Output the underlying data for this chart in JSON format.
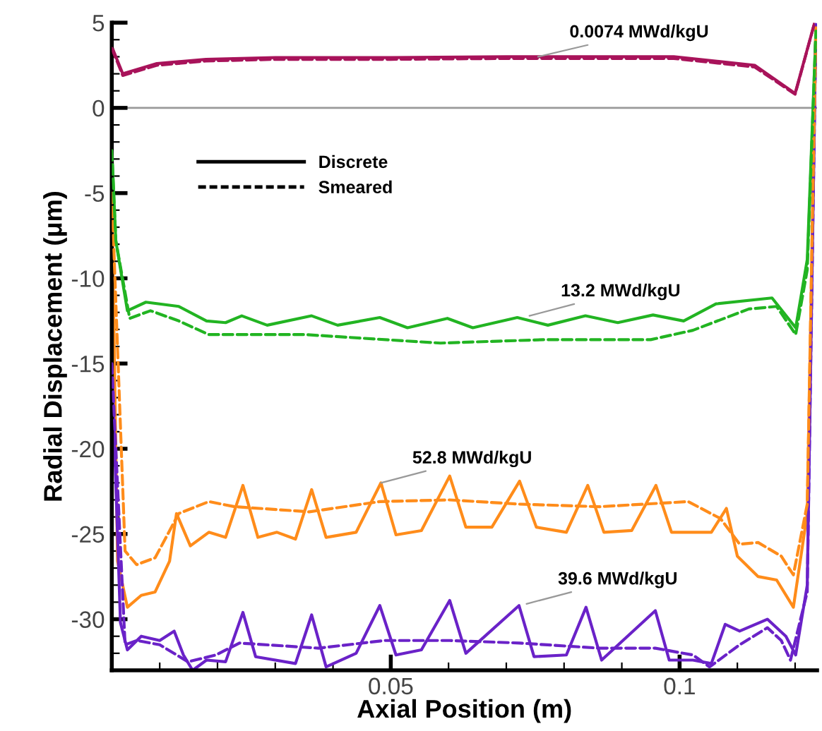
{
  "chart_data": {
    "type": "line",
    "xlabel": "Axial Position (m)",
    "ylabel": "Radial Displacement (μm)",
    "xlim": [
      0.0017,
      0.1238
    ],
    "ylim": [
      -33,
      5
    ],
    "xticks": [
      0.05,
      0.1
    ],
    "yticks": [
      5,
      0,
      -5,
      -10,
      -15,
      -20,
      -25,
      -30
    ],
    "grid": false,
    "ref_lines": [
      {
        "axis": "y",
        "value": 0,
        "color": "#999999"
      }
    ],
    "annotations": [
      {
        "text": "0.0074 MWd/kgU",
        "x": 0.0755,
        "y": 3.0
      },
      {
        "text": "13.2 MWd/kgU",
        "x": 0.074,
        "y": -12.2
      },
      {
        "text": "52.8 MWd/kgU",
        "x": 0.0483,
        "y": -22.0
      },
      {
        "text": "39.6 MWd/kgU",
        "x": 0.0735,
        "y": -29.1
      },
      "Discrete",
      "Smeared"
    ],
    "series": [
      {
        "color": "#a8135a",
        "line_style": "solid",
        "x": [
          0.0017,
          0.0036,
          0.0095,
          0.018,
          0.03,
          0.05,
          0.07,
          0.099,
          0.113,
          0.12,
          0.1233
        ],
        "values": [
          3.6,
          2.0,
          2.6,
          2.85,
          2.95,
          2.95,
          3.0,
          3.0,
          2.5,
          0.85,
          4.9
        ]
      },
      {
        "color": "#a8135a",
        "line_style": "dashed",
        "x": [
          0.0017,
          0.0036,
          0.0095,
          0.018,
          0.03,
          0.05,
          0.07,
          0.099,
          0.113,
          0.12,
          0.1233
        ],
        "values": [
          3.5,
          1.9,
          2.5,
          2.75,
          2.85,
          2.85,
          2.9,
          2.9,
          2.4,
          0.8,
          4.9
        ]
      },
      {
        "color": "#22b422",
        "line_style": "solid",
        "x": [
          0.0017,
          0.0024,
          0.0044,
          0.0076,
          0.0133,
          0.0181,
          0.0214,
          0.0242,
          0.0286,
          0.0363,
          0.0408,
          0.0481,
          0.0529,
          0.0598,
          0.0642,
          0.0719,
          0.0772,
          0.0837,
          0.0893,
          0.0954,
          0.1007,
          0.1063,
          0.116,
          0.1201,
          0.1221,
          0.1236
        ],
        "values": [
          -2.5,
          -7.8,
          -11.9,
          -11.4,
          -11.65,
          -12.5,
          -12.6,
          -12.2,
          -12.75,
          -12.2,
          -12.75,
          -12.3,
          -12.9,
          -12.35,
          -12.9,
          -12.3,
          -12.75,
          -12.2,
          -12.6,
          -12.15,
          -12.5,
          -11.5,
          -11.15,
          -12.9,
          -8.9,
          4.5
        ]
      },
      {
        "color": "#22b422",
        "line_style": "dashed",
        "x": [
          0.0017,
          0.0024,
          0.0048,
          0.0084,
          0.0133,
          0.0185,
          0.0351,
          0.0586,
          0.0764,
          0.095,
          0.1023,
          0.112,
          0.1168,
          0.1201,
          0.1221,
          0.1236
        ],
        "values": [
          -2.5,
          -7.8,
          -12.35,
          -11.9,
          -12.5,
          -13.3,
          -13.3,
          -13.8,
          -13.6,
          -13.6,
          -13.05,
          -11.8,
          -11.65,
          -13.3,
          -9.5,
          4.5
        ]
      },
      {
        "color": "#ff8c1a",
        "line_style": "solid",
        "x": [
          0.0017,
          0.0027,
          0.0044,
          0.0068,
          0.0092,
          0.0117,
          0.0129,
          0.0153,
          0.0185,
          0.0214,
          0.0244,
          0.027,
          0.0303,
          0.0335,
          0.0363,
          0.0388,
          0.044,
          0.0483,
          0.0509,
          0.0553,
          0.0602,
          0.063,
          0.0675,
          0.0723,
          0.0752,
          0.0804,
          0.0841,
          0.0869,
          0.0917,
          0.0959,
          0.0986,
          0.1055,
          0.1081,
          0.11,
          0.1136,
          0.1168,
          0.1197,
          0.1221,
          0.1236
        ],
        "values": [
          -5,
          -26.6,
          -29.3,
          -28.6,
          -28.4,
          -26.6,
          -23.8,
          -25.7,
          -24.9,
          -25.2,
          -22.15,
          -25.2,
          -24.9,
          -25.3,
          -22.4,
          -25.2,
          -24.9,
          -22.0,
          -25.05,
          -24.8,
          -21.6,
          -24.6,
          -24.6,
          -21.9,
          -24.6,
          -24.9,
          -22.15,
          -24.9,
          -24.8,
          -22.15,
          -24.9,
          -24.9,
          -23.5,
          -26.3,
          -27.5,
          -27.7,
          -29.3,
          -23.8,
          4.8
        ]
      },
      {
        "color": "#ff8c1a",
        "line_style": "dashed",
        "x": [
          0.0017,
          0.004,
          0.006,
          0.0092,
          0.0133,
          0.0185,
          0.023,
          0.0359,
          0.0481,
          0.0602,
          0.0723,
          0.0861,
          0.1015,
          0.1071,
          0.1104,
          0.1136,
          0.1176,
          0.1197,
          0.1221,
          0.1236
        ],
        "values": [
          -5,
          -26.0,
          -26.8,
          -26.4,
          -23.8,
          -23.1,
          -23.4,
          -23.7,
          -23.1,
          -23.0,
          -23.25,
          -23.4,
          -23.1,
          -24.1,
          -25.6,
          -25.5,
          -26.3,
          -27.4,
          -23.25,
          4.7
        ]
      },
      {
        "color": "#6a22c8",
        "line_style": "solid",
        "x": [
          0.0017,
          0.0032,
          0.0044,
          0.0068,
          0.01,
          0.0125,
          0.0141,
          0.0157,
          0.0181,
          0.0214,
          0.0244,
          0.0266,
          0.0335,
          0.0363,
          0.0388,
          0.044,
          0.0481,
          0.0509,
          0.0553,
          0.0602,
          0.063,
          0.0722,
          0.0748,
          0.0804,
          0.0838,
          0.0865,
          0.0958,
          0.0982,
          0.1023,
          0.1055,
          0.1079,
          0.1104,
          0.1152,
          0.1184,
          0.1201,
          0.1221,
          0.1236
        ],
        "values": [
          -15,
          -30.2,
          -31.8,
          -31.0,
          -31.25,
          -30.7,
          -32.1,
          -33.0,
          -32.4,
          -32.5,
          -29.6,
          -32.2,
          -32.6,
          -29.75,
          -32.8,
          -32.0,
          -29.2,
          -32.1,
          -31.8,
          -28.9,
          -32.0,
          -29.2,
          -32.2,
          -32.1,
          -29.3,
          -32.4,
          -29.5,
          -32.4,
          -32.4,
          -32.6,
          -30.3,
          -30.7,
          -30.0,
          -31.0,
          -32.1,
          -28.0,
          4.8
        ]
      },
      {
        "color": "#6a22c8",
        "line_style": "dashed",
        "x": [
          0.0017,
          0.004,
          0.006,
          0.01,
          0.0149,
          0.0197,
          0.0238,
          0.0375,
          0.0489,
          0.0602,
          0.0723,
          0.0861,
          0.0958,
          0.1023,
          0.1052,
          0.1104,
          0.1152,
          0.1176,
          0.1192,
          0.1221,
          0.1236
        ],
        "values": [
          -15,
          -31.5,
          -31.25,
          -31.5,
          -32.5,
          -32.1,
          -31.4,
          -31.7,
          -31.25,
          -31.25,
          -31.4,
          -31.7,
          -31.7,
          -32.1,
          -32.8,
          -31.5,
          -30.5,
          -31.25,
          -32.4,
          -28.4,
          4.9
        ]
      }
    ]
  }
}
